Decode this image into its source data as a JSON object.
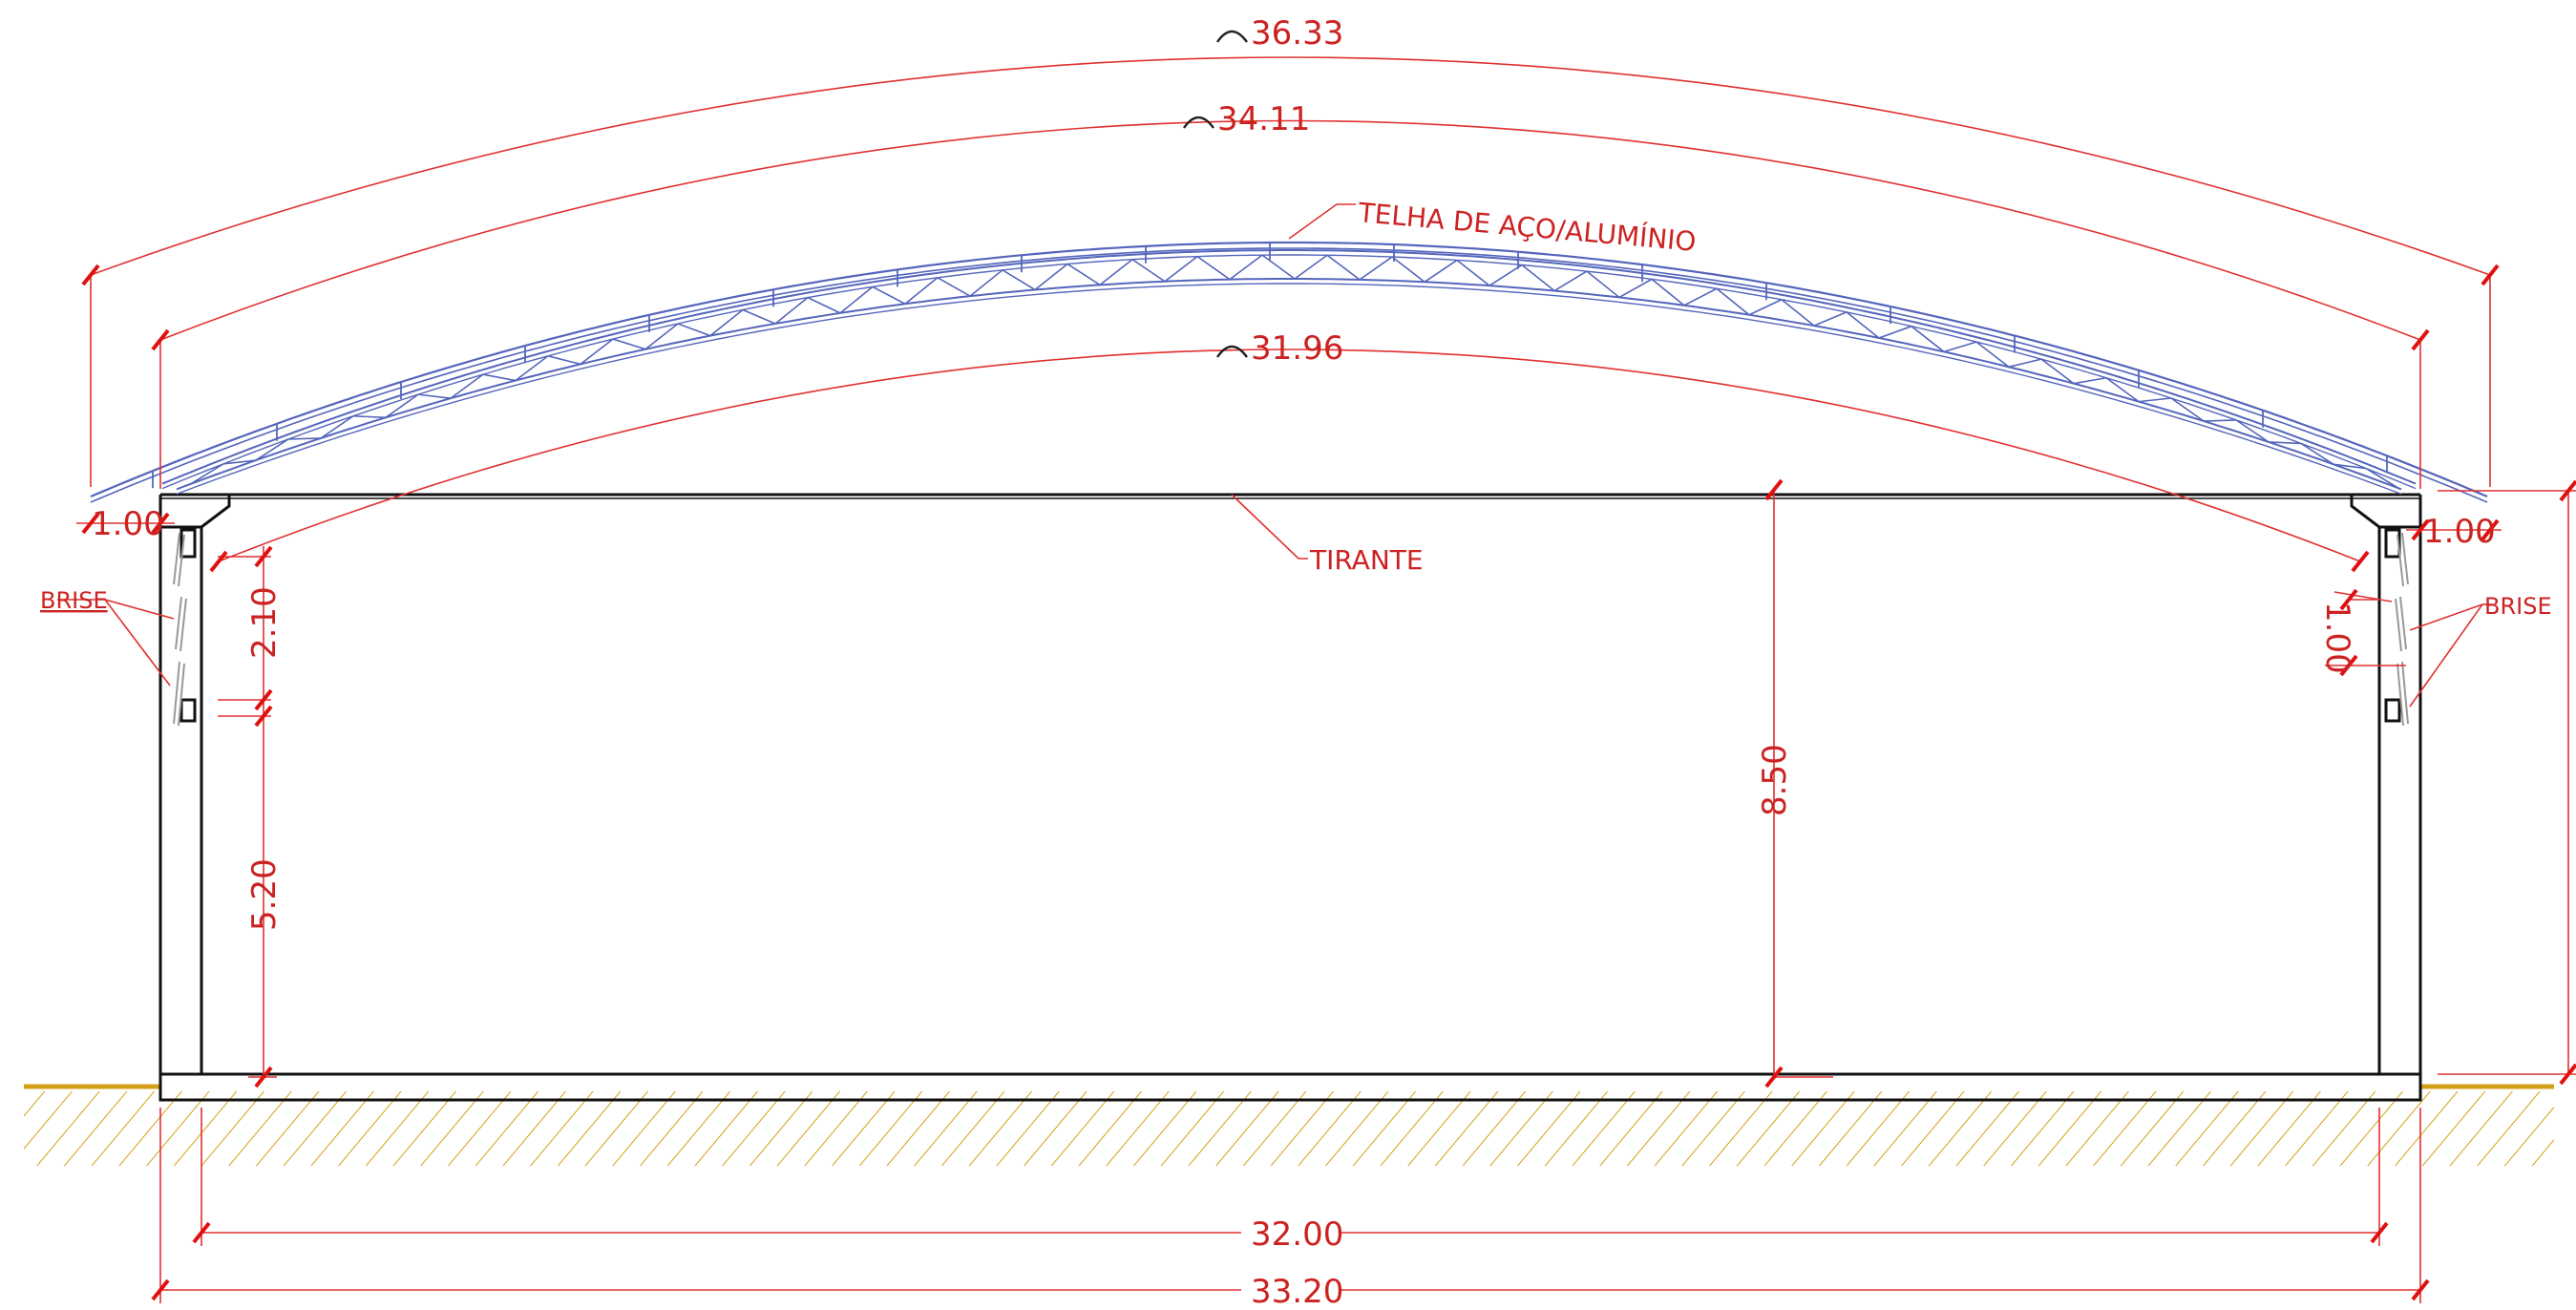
{
  "drawing": {
    "colors": {
      "dimension": "#e03030",
      "structure": "#111111",
      "roof_truss": "#5566bb",
      "ground": "#d4a017"
    },
    "dimensions": {
      "arc_outer": "36.33",
      "arc_middle": "34.11",
      "arc_inner": "31.96",
      "eave_left": "1.00",
      "eave_right": "1.00",
      "brise_height": "2.10",
      "wall_height": "5.20",
      "total_height": "8.50",
      "brise_right_dim": "1.00",
      "clear_span": "32.00",
      "total_span": "33.20"
    },
    "labels": {
      "roof": "TELHA DE AÇO/ALUMÍNIO",
      "tie": "TIRANTE",
      "brise_left": "BRISE",
      "brise_right": "BRISE"
    }
  }
}
